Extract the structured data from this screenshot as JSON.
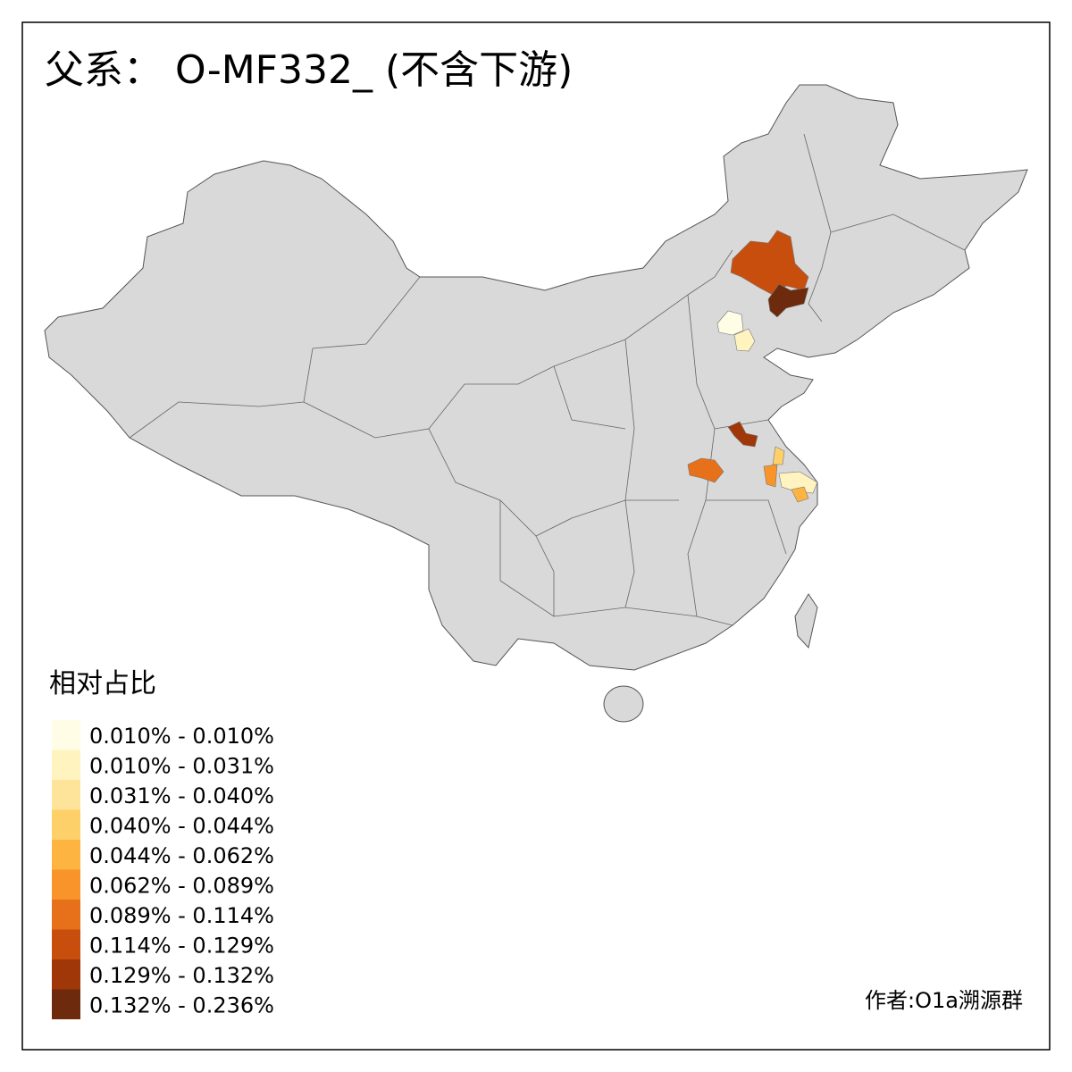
{
  "title": "父系： O-MF332_ (不含下游)",
  "legend": {
    "title": "相对占比",
    "items": [
      {
        "label": "0.010% - 0.010%",
        "color": "#FFFDE6"
      },
      {
        "label": "0.010% - 0.031%",
        "color": "#FFF3C0"
      },
      {
        "label": "0.031% - 0.040%",
        "color": "#FEE49A"
      },
      {
        "label": "0.040% - 0.044%",
        "color": "#FED06A"
      },
      {
        "label": "0.044% - 0.062%",
        "color": "#FDB441"
      },
      {
        "label": "0.062% - 0.089%",
        "color": "#F8942A"
      },
      {
        "label": "0.089% - 0.114%",
        "color": "#E6711A"
      },
      {
        "label": "0.114% - 0.129%",
        "color": "#C74E0C"
      },
      {
        "label": "0.129% - 0.132%",
        "color": "#A03708"
      },
      {
        "label": "0.132% - 0.236%",
        "color": "#6E2A0D"
      }
    ]
  },
  "credit": "作者:O1a溯源群"
}
